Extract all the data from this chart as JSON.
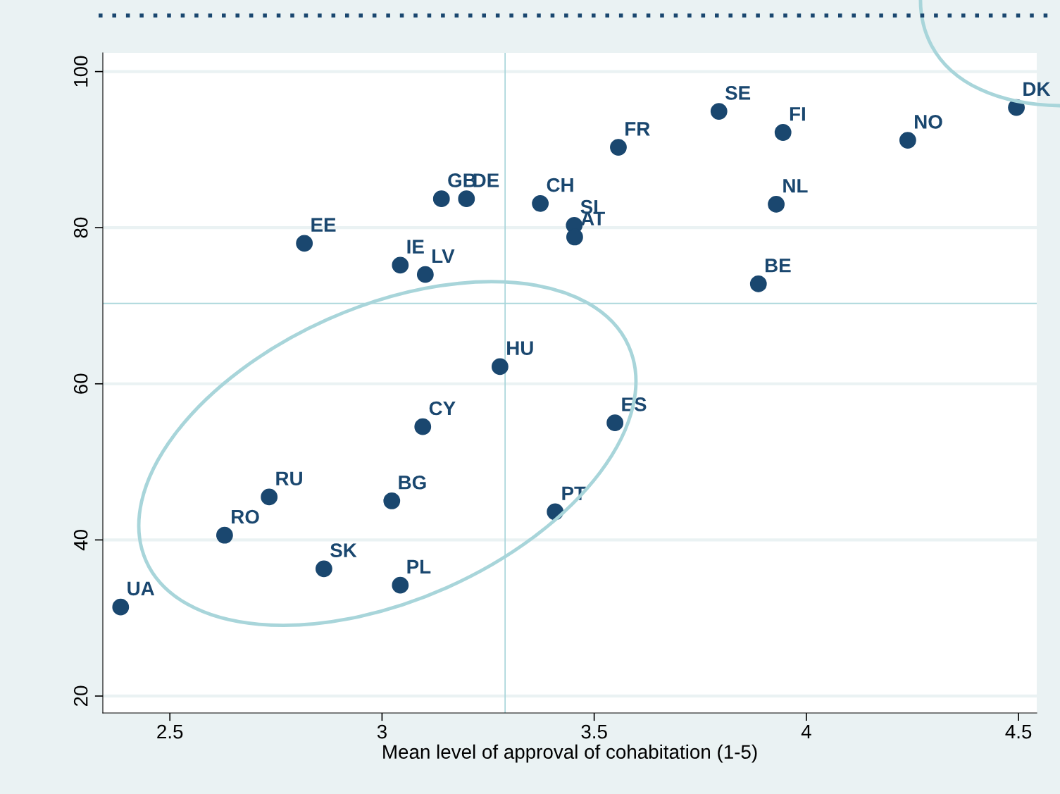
{
  "chart_data": {
    "type": "scatter",
    "xlabel": "Mean level of approval of cohabitation (1-5)",
    "x": [
      2.384,
      2.629,
      2.734,
      2.863,
      3.023,
      3.043,
      3.096,
      3.043,
      3.102,
      2.817,
      3.14,
      3.199,
      3.278,
      3.373,
      3.453,
      3.454,
      3.557,
      3.549,
      3.408,
      3.794,
      3.945,
      4.239,
      4.495,
      3.929,
      3.887
    ],
    "values": [
      31.4,
      40.6,
      45.5,
      36.3,
      45.0,
      34.2,
      54.5,
      75.2,
      74.0,
      78.0,
      83.7,
      83.7,
      62.2,
      83.1,
      80.3,
      78.8,
      90.3,
      55.0,
      43.6,
      94.9,
      92.2,
      91.2,
      95.4,
      83.0,
      72.8
    ],
    "color": "#1a476f",
    "marker": "circle",
    "annotations": [
      {
        "text": "UA",
        "x": 2.384,
        "y": 31.4
      },
      {
        "text": "RO",
        "x": 2.629,
        "y": 40.6
      },
      {
        "text": "RU",
        "x": 2.734,
        "y": 45.5
      },
      {
        "text": "SK",
        "x": 2.863,
        "y": 36.3
      },
      {
        "text": "BG",
        "x": 3.023,
        "y": 45.0
      },
      {
        "text": "PL",
        "x": 3.043,
        "y": 34.2
      },
      {
        "text": "CY",
        "x": 3.096,
        "y": 54.5
      },
      {
        "text": "IE",
        "x": 3.043,
        "y": 75.2
      },
      {
        "text": "LV",
        "x": 3.102,
        "y": 74.0
      },
      {
        "text": "EE",
        "x": 2.817,
        "y": 78.0
      },
      {
        "text": "GB",
        "x": 3.14,
        "y": 83.7
      },
      {
        "text": "DE",
        "x": 3.199,
        "y": 83.7
      },
      {
        "text": "HU",
        "x": 3.278,
        "y": 62.2
      },
      {
        "text": "CH",
        "x": 3.373,
        "y": 83.1
      },
      {
        "text": "SI",
        "x": 3.453,
        "y": 80.3
      },
      {
        "text": "AT",
        "x": 3.454,
        "y": 78.8
      },
      {
        "text": "FR",
        "x": 3.557,
        "y": 90.3
      },
      {
        "text": "ES",
        "x": 3.549,
        "y": 55.0
      },
      {
        "text": "PT",
        "x": 3.408,
        "y": 43.6
      },
      {
        "text": "SE",
        "x": 3.794,
        "y": 94.9
      },
      {
        "text": "FI",
        "x": 3.945,
        "y": 92.2
      },
      {
        "text": "NO",
        "x": 4.239,
        "y": 91.2
      },
      {
        "text": "DK",
        "x": 4.495,
        "y": 95.4
      },
      {
        "text": "NL",
        "x": 3.929,
        "y": 83.0
      },
      {
        "text": "BE",
        "x": 3.887,
        "y": 72.8
      }
    ],
    "ref_lines": [
      {
        "axis": "x",
        "value": 3.29,
        "color": "#a8d5da"
      },
      {
        "axis": "y",
        "value": 70.3,
        "color": "#a8d5da"
      }
    ],
    "xlim": [
      2.342,
      4.543
    ],
    "ylim": [
      17.83,
      102.4
    ],
    "xticks": [
      2.5,
      3,
      3.5,
      4,
      4.5
    ],
    "yticks": [
      20,
      40,
      60,
      80,
      100
    ],
    "grid": "y"
  }
}
